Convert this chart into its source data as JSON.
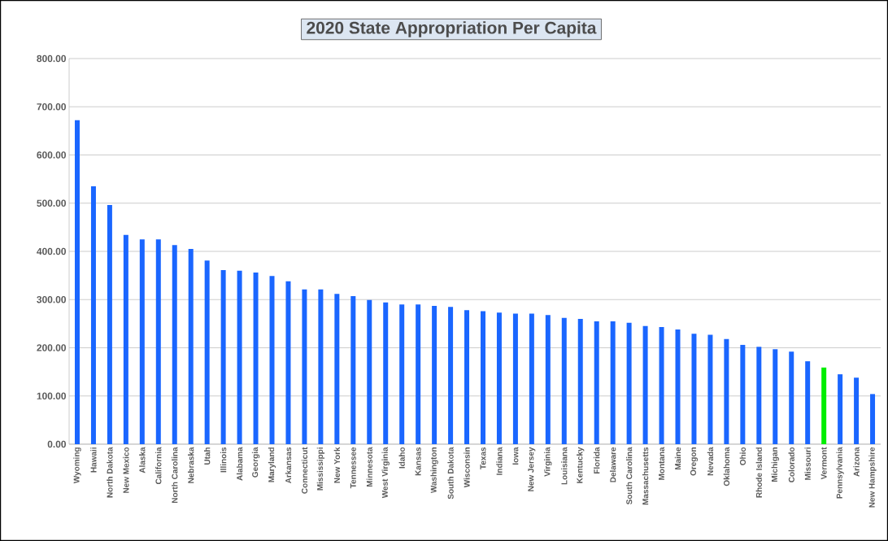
{
  "chart_data": {
    "type": "bar",
    "title": "2020 State Appropriation Per Capita",
    "categories": [
      "Wyoming",
      "Hawaii",
      "North Dakota",
      "New Mexico",
      "Alaska",
      "California",
      "North Carolina",
      "Nebraska",
      "Utah",
      "Illinois",
      "Alabama",
      "Georgia",
      "Maryland",
      "Arkansas",
      "Connecticut",
      "Mississippi",
      "New York",
      "Tennessee",
      "Minnesota",
      "West Virginia",
      "Idaho",
      "Kansas",
      "Washington",
      "South Dakota",
      "Wisconsin",
      "Texas",
      "Indiana",
      "Iowa",
      "New Jersey",
      "Virginia",
      "Louisiana",
      "Kentucky",
      "Florida",
      "Delaware",
      "South Carolina",
      "Massachusetts",
      "Montana",
      "Maine",
      "Oregon",
      "Nevada",
      "Oklahoma",
      "Ohio",
      "Rhode Island",
      "Michigan",
      "Colorado",
      "Missouri",
      "Vermont",
      "Pennsylvania",
      "Arizona",
      "New Hampshire"
    ],
    "values": [
      672,
      535,
      496,
      434,
      425,
      425,
      413,
      405,
      381,
      361,
      360,
      356,
      349,
      338,
      321,
      321,
      312,
      307,
      299,
      294,
      290,
      290,
      287,
      285,
      278,
      276,
      273,
      271,
      271,
      268,
      262,
      260,
      255,
      255,
      252,
      245,
      243,
      238,
      229,
      227,
      218,
      206,
      202,
      197,
      192,
      172,
      159,
      145,
      138,
      104
    ],
    "colors": [
      "#1a66ff",
      "#1a66ff",
      "#1a66ff",
      "#1a66ff",
      "#1a66ff",
      "#1a66ff",
      "#1a66ff",
      "#1a66ff",
      "#1a66ff",
      "#1a66ff",
      "#1a66ff",
      "#1a66ff",
      "#1a66ff",
      "#1a66ff",
      "#1a66ff",
      "#1a66ff",
      "#1a66ff",
      "#1a66ff",
      "#1a66ff",
      "#1a66ff",
      "#1a66ff",
      "#1a66ff",
      "#1a66ff",
      "#1a66ff",
      "#1a66ff",
      "#1a66ff",
      "#1a66ff",
      "#1a66ff",
      "#1a66ff",
      "#1a66ff",
      "#1a66ff",
      "#1a66ff",
      "#1a66ff",
      "#1a66ff",
      "#1a66ff",
      "#1a66ff",
      "#1a66ff",
      "#1a66ff",
      "#1a66ff",
      "#1a66ff",
      "#1a66ff",
      "#1a66ff",
      "#1a66ff",
      "#1a66ff",
      "#1a66ff",
      "#1a66ff",
      "#00ee00",
      "#1a66ff",
      "#1a66ff",
      "#1a66ff"
    ],
    "ylim": [
      0,
      800
    ],
    "yticks": [
      {
        "value": 0,
        "label": "0.00"
      },
      {
        "value": 100,
        "label": "100.00"
      },
      {
        "value": 200,
        "label": "200.00"
      },
      {
        "value": 300,
        "label": "300.00"
      },
      {
        "value": 400,
        "label": "400.00"
      },
      {
        "value": 500,
        "label": "500.00"
      },
      {
        "value": 600,
        "label": "600.00"
      },
      {
        "value": 700,
        "label": "700.00"
      },
      {
        "value": 800,
        "label": "800.00"
      }
    ],
    "grid": "y"
  }
}
